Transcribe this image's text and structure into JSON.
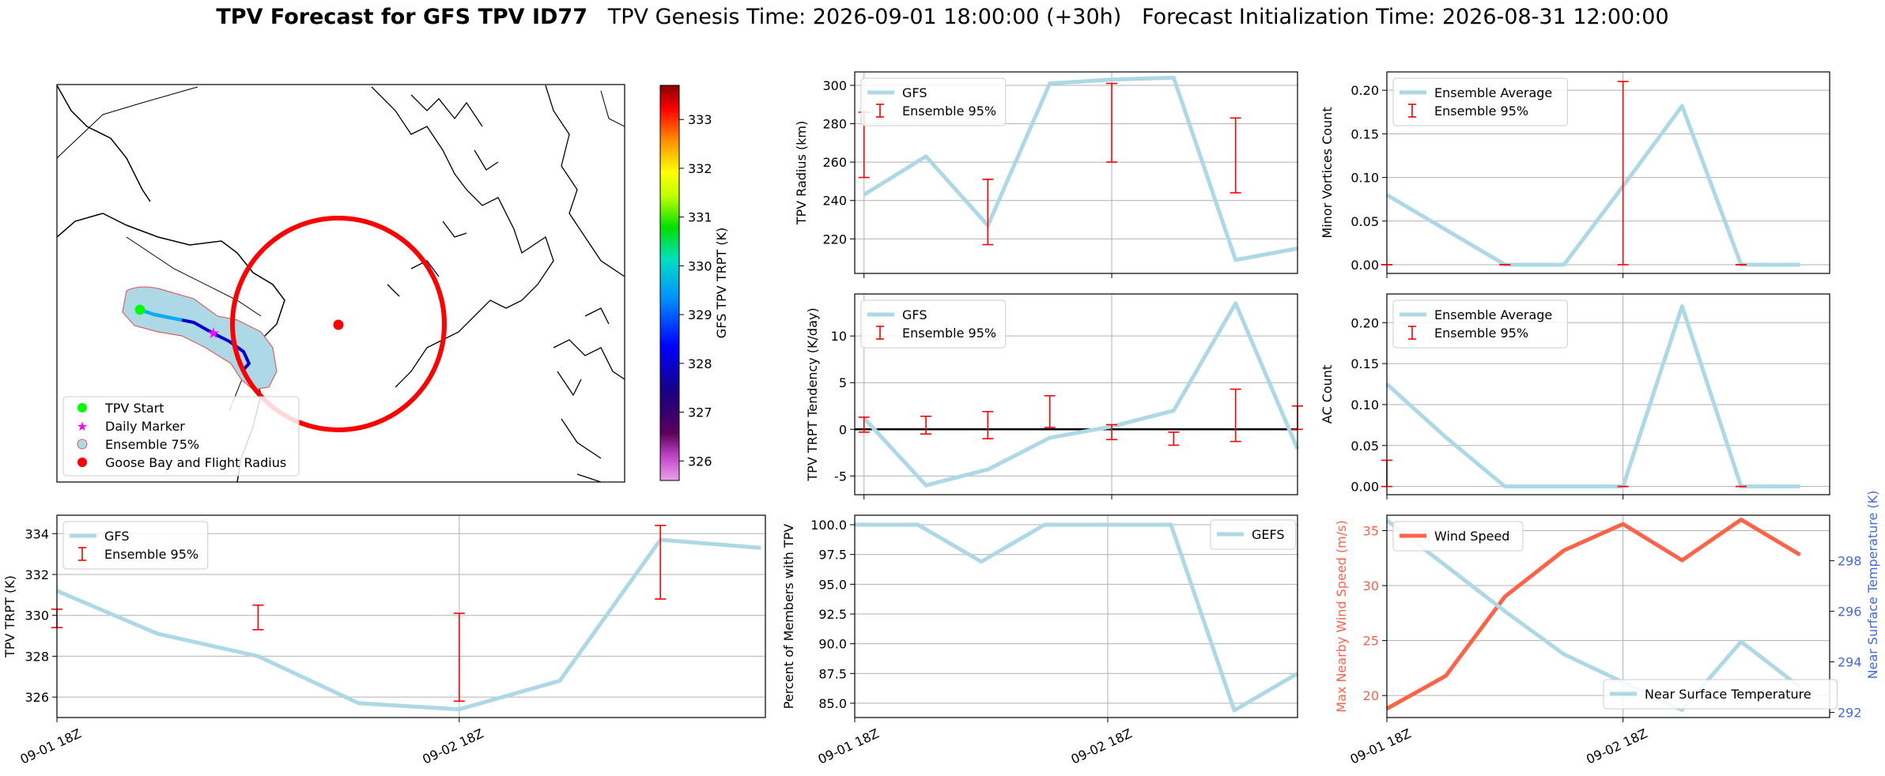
{
  "title": {
    "main": "TPV Forecast for GFS TPV ID77",
    "genesis": "TPV Genesis Time: 2026-09-01 18:00:00 (+30h)",
    "init": "Forecast Initialization Time: 2026-08-31 12:00:00"
  },
  "colors": {
    "line": "#add8e6",
    "err": "#ff0000",
    "wind": "#ff6347",
    "temp_axis": "#4169e1",
    "start": "#00ff00",
    "daily": "#ff00ff",
    "goose": "#ff0000"
  },
  "map": {
    "legend": [
      {
        "label": "TPV Start",
        "marker": "circle",
        "color": "#00ff00"
      },
      {
        "label": "Daily Marker",
        "marker": "star",
        "color": "#ff00ff"
      },
      {
        "label": "Ensemble 75%",
        "marker": "patch",
        "color": "#add8e6"
      },
      {
        "label": "Goose Bay and Flight Radius",
        "marker": "circle",
        "color": "#ff0000"
      }
    ],
    "colorbar": {
      "label": "GFS TPV TRPT (K)",
      "ticks": [
        "326",
        "327",
        "328",
        "329",
        "330",
        "331",
        "332",
        "333"
      ],
      "range": [
        325.6,
        333.7
      ]
    }
  },
  "chart_data": [
    {
      "id": "radius",
      "type": "line",
      "ylabel": "TPV Radius (km)",
      "ylim": [
        202,
        307
      ],
      "yticks": [
        "220",
        "240",
        "260",
        "280",
        "300"
      ],
      "x": [
        0,
        1,
        2,
        3,
        4,
        5,
        6,
        7
      ],
      "series": [
        {
          "name": "GFS",
          "values": [
            243,
            263,
            227,
            301,
            303,
            304,
            209,
            215
          ]
        },
        {
          "name": "Ensemble 95%",
          "type": "errorbar",
          "x": [
            0,
            2,
            4,
            6
          ],
          "low": [
            252,
            217,
            260,
            244
          ],
          "high": [
            286,
            251,
            301,
            283
          ]
        }
      ],
      "legend": [
        "GFS",
        "Ensemble 95%"
      ],
      "legend_loc": "upper left"
    },
    {
      "id": "minor",
      "type": "line",
      "ylabel": "Minor Vortices Count",
      "ylim": [
        -0.01,
        0.221
      ],
      "yticks": [
        "0.00",
        "0.05",
        "0.10",
        "0.15",
        "0.20"
      ],
      "x": [
        0,
        1,
        2,
        3,
        4,
        5,
        6,
        7
      ],
      "series": [
        {
          "name": "Ensemble Average",
          "values": [
            0.08,
            0.04,
            0.0,
            0.0,
            0.09,
            0.182,
            0.0,
            0.0
          ]
        },
        {
          "name": "Ensemble 95%",
          "type": "errorbar",
          "x": [
            0,
            2,
            4,
            6
          ],
          "low": [
            0.0,
            0.0,
            0.0,
            0.0
          ],
          "high": [
            0.0,
            0.0,
            0.21,
            0.0
          ]
        }
      ],
      "legend": [
        "Ensemble Average",
        "Ensemble 95%"
      ],
      "legend_loc": "upper left"
    },
    {
      "id": "tendency",
      "type": "line",
      "ylabel": "TPV TRPT Tendency (K/day)",
      "ylim": [
        -7,
        14.5
      ],
      "yticks": [
        "-5",
        "0",
        "5",
        "10"
      ],
      "zero_line": true,
      "x": [
        0,
        1,
        2,
        3,
        4,
        5,
        6,
        7
      ],
      "series": [
        {
          "name": "GFS",
          "values": [
            1.2,
            -6.0,
            -4.3,
            -0.9,
            0.3,
            2.0,
            13.5,
            -2.1
          ]
        },
        {
          "name": "Ensemble 95%",
          "type": "errorbar",
          "x": [
            0,
            1,
            2,
            3,
            4,
            5,
            6,
            7
          ],
          "low": [
            -0.3,
            -0.5,
            -1.0,
            0.2,
            -1.1,
            -1.7,
            -1.3,
            0.0
          ],
          "high": [
            1.3,
            1.4,
            1.9,
            3.6,
            0.5,
            -0.3,
            4.3,
            2.5
          ]
        }
      ],
      "legend": [
        "GFS",
        "Ensemble 95%"
      ],
      "legend_loc": "upper left"
    },
    {
      "id": "ac",
      "type": "line",
      "ylabel": "AC Count",
      "ylim": [
        -0.01,
        0.235
      ],
      "yticks": [
        "0.00",
        "0.05",
        "0.10",
        "0.15",
        "0.20"
      ],
      "x": [
        0,
        1,
        2,
        3,
        4,
        5,
        6,
        7
      ],
      "series": [
        {
          "name": "Ensemble Average",
          "values": [
            0.125,
            0.06,
            0.0,
            0.0,
            0.0,
            0.22,
            0.0,
            0.0
          ]
        },
        {
          "name": "Ensemble 95%",
          "type": "errorbar",
          "x": [
            0,
            4,
            6
          ],
          "low": [
            0.0,
            0.0,
            0.0
          ],
          "high": [
            0.032,
            0.0,
            0.0
          ]
        }
      ],
      "legend": [
        "Ensemble Average",
        "Ensemble 95%"
      ],
      "legend_loc": "upper left"
    },
    {
      "id": "trpt",
      "type": "line",
      "ylabel": "TPV TRPT (K)",
      "ylim": [
        325.0,
        334.9
      ],
      "yticks": [
        "326",
        "328",
        "330",
        "332",
        "334"
      ],
      "x": [
        0,
        1,
        2,
        3,
        4,
        5,
        6,
        7
      ],
      "series": [
        {
          "name": "GFS",
          "values": [
            331.2,
            329.1,
            328.0,
            325.7,
            325.4,
            326.8,
            333.7,
            333.3
          ]
        },
        {
          "name": "Ensemble 95%",
          "type": "errorbar",
          "x": [
            0,
            2,
            4,
            6
          ],
          "low": [
            329.4,
            329.3,
            325.8,
            330.8
          ],
          "high": [
            330.3,
            330.5,
            330.1,
            334.4
          ]
        }
      ],
      "legend": [
        "GFS",
        "Ensemble 95%"
      ],
      "legend_loc": "upper left"
    },
    {
      "id": "percent",
      "type": "line",
      "ylabel": "Percent of Members with TPV",
      "ylim": [
        83.8,
        100.8
      ],
      "yticks": [
        "85.0",
        "87.5",
        "90.0",
        "92.5",
        "95.0",
        "97.5",
        "100.0"
      ],
      "x": [
        0,
        1,
        2,
        3,
        4,
        5,
        6,
        7
      ],
      "series": [
        {
          "name": "GEFS",
          "values": [
            100.0,
            100.0,
            96.9,
            100.0,
            100.0,
            100.0,
            84.4,
            87.5
          ]
        }
      ],
      "legend": [
        "GEFS"
      ],
      "legend_loc": "upper right"
    },
    {
      "id": "wind",
      "type": "line",
      "ylabel": "Max Nearby Wind Speed (m/s)",
      "ylim": [
        18.0,
        36.4
      ],
      "yticks": [
        "20",
        "25",
        "30",
        "35"
      ],
      "y2label": "Near Surface Temperature (K)",
      "y2lim": [
        291.8,
        299.8
      ],
      "y2ticks": [
        "292",
        "294",
        "296",
        "298"
      ],
      "x": [
        0,
        1,
        2,
        3,
        4,
        5,
        6,
        7
      ],
      "series": [
        {
          "name": "Wind Speed",
          "axis": "left",
          "values": [
            18.8,
            21.8,
            29.0,
            33.2,
            35.6,
            32.3,
            36.0,
            32.8
          ]
        },
        {
          "name": "Near Surface Temperature",
          "axis": "right",
          "values": [
            299.6,
            297.8,
            296.0,
            294.3,
            293.2,
            292.1,
            294.8,
            293.0
          ]
        }
      ],
      "legend": [
        "Wind Speed"
      ],
      "legend_loc": "upper left",
      "legend2": [
        "Near Surface Temperature"
      ],
      "legend2_loc": "lower right"
    }
  ],
  "xticks": [
    "09-01 18Z",
    "09-02 18Z"
  ]
}
